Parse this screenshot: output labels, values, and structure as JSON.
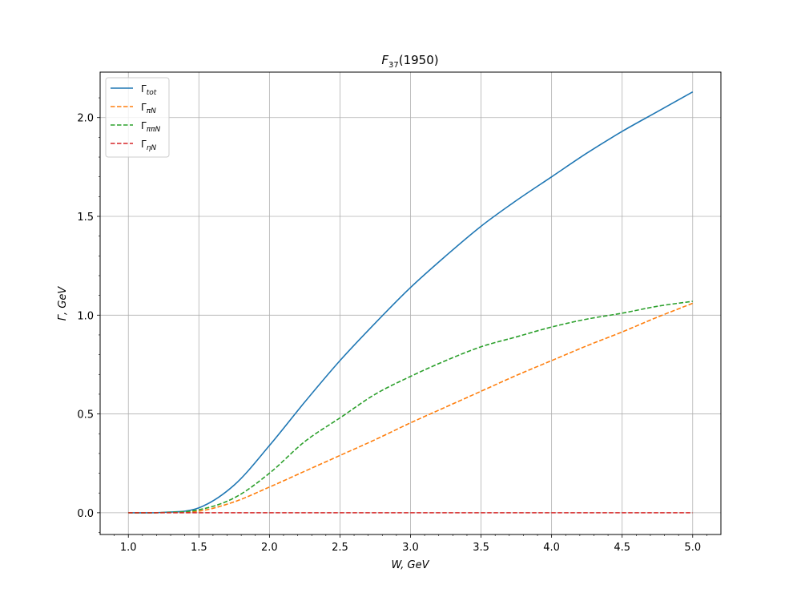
{
  "chart_data": {
    "type": "line",
    "title": "F37(1950)",
    "title_main": "F",
    "title_sub": "37",
    "title_rest": "(1950)",
    "xlabel": "W, GeV",
    "ylabel": "Γ, GeV",
    "xlim": [
      0.8,
      5.2
    ],
    "ylim": [
      -0.11,
      2.23
    ],
    "xticks": [
      1.0,
      1.5,
      2.0,
      2.5,
      3.0,
      3.5,
      4.0,
      4.5,
      5.0
    ],
    "xtick_labels": [
      "1.0",
      "1.5",
      "2.0",
      "2.5",
      "3.0",
      "3.5",
      "4.0",
      "4.5",
      "5.0"
    ],
    "yticks": [
      0.0,
      0.5,
      1.0,
      1.5,
      2.0
    ],
    "ytick_labels": [
      "0.0",
      "0.5",
      "1.0",
      "1.5",
      "2.0"
    ],
    "grid": true,
    "legend_position": "top-left",
    "x": [
      1.0,
      1.25,
      1.5,
      1.75,
      2.0,
      2.25,
      2.5,
      2.75,
      3.0,
      3.25,
      3.5,
      3.75,
      4.0,
      4.25,
      4.5,
      4.75,
      5.0
    ],
    "series": [
      {
        "name": "Γtot",
        "label_main": "Γ",
        "label_sub": "tot",
        "color": "#1f77b4",
        "dash": "solid",
        "values": [
          0.0,
          0.002,
          0.025,
          0.14,
          0.34,
          0.56,
          0.77,
          0.96,
          1.14,
          1.3,
          1.45,
          1.58,
          1.7,
          1.82,
          1.93,
          2.03,
          2.13
        ]
      },
      {
        "name": "ΓπN",
        "label_main": "Γ",
        "label_sub": "πN",
        "color": "#ff7f0e",
        "dash": "dashed",
        "values": [
          0.0,
          0.001,
          0.008,
          0.055,
          0.13,
          0.21,
          0.29,
          0.37,
          0.455,
          0.535,
          0.615,
          0.695,
          0.77,
          0.845,
          0.915,
          0.99,
          1.06
        ]
      },
      {
        "name": "ΓππN",
        "label_main": "Γ",
        "label_sub": "ππN",
        "color": "#2ca02c",
        "dash": "dashed",
        "values": [
          0.0,
          0.001,
          0.015,
          0.075,
          0.2,
          0.36,
          0.48,
          0.6,
          0.69,
          0.77,
          0.84,
          0.89,
          0.94,
          0.98,
          1.01,
          1.045,
          1.07
        ]
      },
      {
        "name": "ΓηN",
        "label_main": "Γ",
        "label_sub": "ηN",
        "color": "#d62728",
        "dash": "dashed",
        "values": [
          0.0,
          0.0,
          0.0,
          0.0,
          0.0,
          0.0,
          0.0,
          0.0,
          0.0,
          0.0,
          0.0,
          0.0,
          0.0,
          0.0,
          0.0,
          0.0,
          0.0
        ]
      }
    ]
  }
}
